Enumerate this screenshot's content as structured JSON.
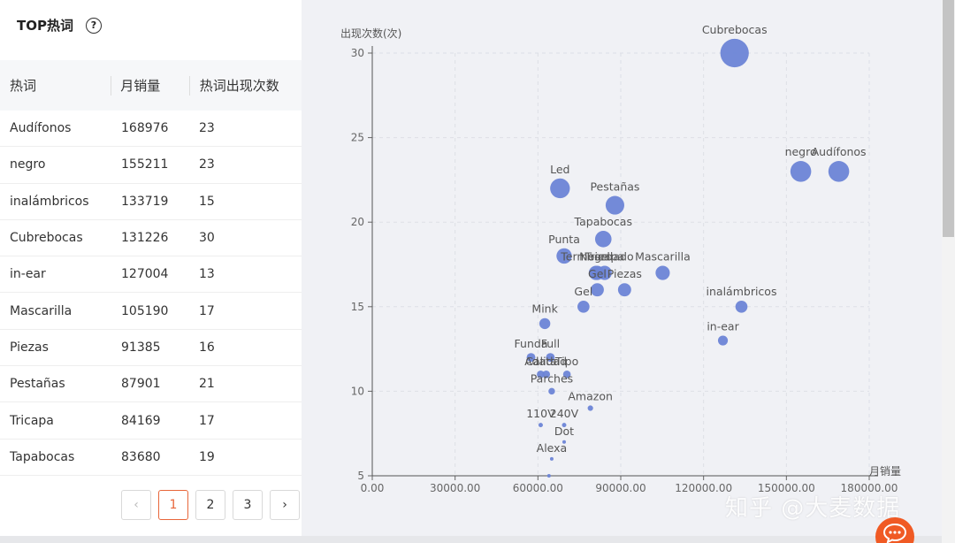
{
  "panel": {
    "title": "TOP热词",
    "help_icon": "question-circle-icon"
  },
  "table": {
    "headers": [
      "热词",
      "月销量",
      "热词出现次数"
    ],
    "rows": [
      [
        "Audífonos",
        "168976",
        "23"
      ],
      [
        "negro",
        "155211",
        "23"
      ],
      [
        "inalámbricos",
        "133719",
        "15"
      ],
      [
        "Cubrebocas",
        "131226",
        "30"
      ],
      [
        "in-ear",
        "127004",
        "13"
      ],
      [
        "Mascarilla",
        "105190",
        "17"
      ],
      [
        "Piezas",
        "91385",
        "16"
      ],
      [
        "Pestañas",
        "87901",
        "21"
      ],
      [
        "Tricapa",
        "84169",
        "17"
      ],
      [
        "Tapabocas",
        "83680",
        "19"
      ]
    ]
  },
  "pagination": {
    "prev": "‹",
    "pages": [
      "1",
      "2",
      "3"
    ],
    "current": "1",
    "next": "›"
  },
  "watermark": "知乎 @大麦数据",
  "chart_data": {
    "type": "scatter",
    "ylabel": "出现次数(次)",
    "xlabel": "月销量",
    "xlim": [
      0,
      180000
    ],
    "ylim": [
      5,
      30
    ],
    "xticks": [
      "0.00",
      "30000.00",
      "60000.00",
      "90000.00",
      "120000.00",
      "150000.00",
      "180000.00"
    ],
    "yticks": [
      "5",
      "10",
      "15",
      "20",
      "25",
      "30"
    ],
    "grid": true,
    "color": "#6b84d6",
    "points": [
      {
        "label": "Cubrebocas",
        "x": 131226,
        "y": 30
      },
      {
        "label": "negro",
        "x": 155211,
        "y": 23
      },
      {
        "label": "Audífonos",
        "x": 168976,
        "y": 23
      },
      {
        "label": "Led",
        "x": 68000,
        "y": 22
      },
      {
        "label": "Pestañas",
        "x": 87901,
        "y": 21
      },
      {
        "label": "Tapabocas",
        "x": 83680,
        "y": 19
      },
      {
        "label": "Punta",
        "x": 69500,
        "y": 18
      },
      {
        "label": "Negro",
        "x": 81000,
        "y": 17
      },
      {
        "label": "Tricapa",
        "x": 84169,
        "y": 17
      },
      {
        "label": "Termosellado",
        "x": 81500,
        "y": 17
      },
      {
        "label": "Piezas",
        "x": 91385,
        "y": 16
      },
      {
        "label": "Mascarilla",
        "x": 105190,
        "y": 17
      },
      {
        "label": "Gel",
        "x": 81500,
        "y": 16
      },
      {
        "label": "inalámbricos",
        "x": 133719,
        "y": 15
      },
      {
        "label": "Gel",
        "x": 76500,
        "y": 15
      },
      {
        "label": "Mink",
        "x": 62500,
        "y": 14
      },
      {
        "label": "in-ear",
        "x": 127004,
        "y": 13
      },
      {
        "label": "Full",
        "x": 64500,
        "y": 12
      },
      {
        "label": "Funda",
        "x": 57500,
        "y": 12
      },
      {
        "label": "Tipo",
        "x": 70500,
        "y": 11
      },
      {
        "label": "Adata",
        "x": 61000,
        "y": 11
      },
      {
        "label": "Calidad",
        "x": 63000,
        "y": 11
      },
      {
        "label": "Amazon",
        "x": 79000,
        "y": 9
      },
      {
        "label": "Parches",
        "x": 65000,
        "y": 10
      },
      {
        "label": "240V",
        "x": 69500,
        "y": 8
      },
      {
        "label": "110V",
        "x": 61000,
        "y": 8
      },
      {
        "label": "Dot",
        "x": 69500,
        "y": 7
      },
      {
        "label": "Alexa",
        "x": 65000,
        "y": 6
      },
      {
        "label": "",
        "x": 64000,
        "y": 5
      }
    ]
  }
}
